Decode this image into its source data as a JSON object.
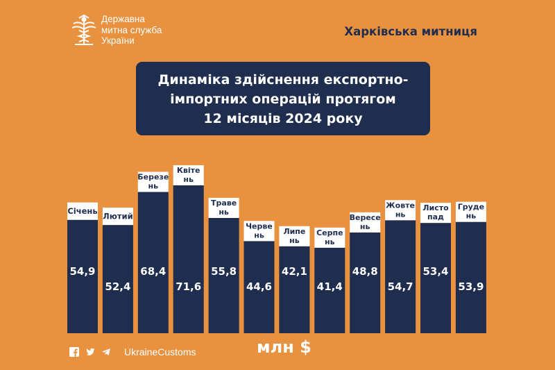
{
  "header": {
    "logo_lines": [
      "Державна",
      "митна служба",
      "України"
    ],
    "office": "Харківська митниця"
  },
  "title_lines": [
    "Динаміка здійснення експортно-",
    "імпортних операцій протягом",
    "12 місяців 2024 року"
  ],
  "footer": {
    "icons": [
      "facebook-icon",
      "twitter-icon",
      "telegram-icon"
    ],
    "handle": "UkraineCustoms",
    "unit": "млн $"
  },
  "colors": {
    "background": "#E8913F",
    "bar": "#1F2D4E",
    "label_box": "#FFFFFF",
    "text_dark": "#1F2D4E"
  },
  "chart_data": {
    "type": "bar",
    "categories": [
      "Січень",
      "Лютий",
      "Березень",
      "Квітень",
      "Травень",
      "Червень",
      "Липень",
      "Серпень",
      "Вересень",
      "Жовтень",
      "Листопад",
      "Грудень"
    ],
    "category_display": [
      [
        "Січень"
      ],
      [
        "Лютий"
      ],
      [
        "Березе",
        "нь"
      ],
      [
        "Квіте",
        "нь"
      ],
      [
        "Траве",
        "нь"
      ],
      [
        "Черве",
        "нь"
      ],
      [
        "Липе",
        "нь"
      ],
      [
        "Серпе",
        "нь"
      ],
      [
        "Вересе",
        "нь"
      ],
      [
        "Жовте",
        "нь"
      ],
      [
        "Листо",
        "пад"
      ],
      [
        "Груде",
        "нь"
      ]
    ],
    "values": [
      54.9,
      52.4,
      68.4,
      71.6,
      55.8,
      44.6,
      42.1,
      41.4,
      48.8,
      54.7,
      53.4,
      53.9
    ],
    "value_labels": [
      "54,9",
      "52,4",
      "68,4",
      "71,6",
      "55,8",
      "44,6",
      "42,1",
      "41,4",
      "48,8",
      "54,7",
      "53,4",
      "53,9"
    ],
    "ylabel": "млн $"
  }
}
